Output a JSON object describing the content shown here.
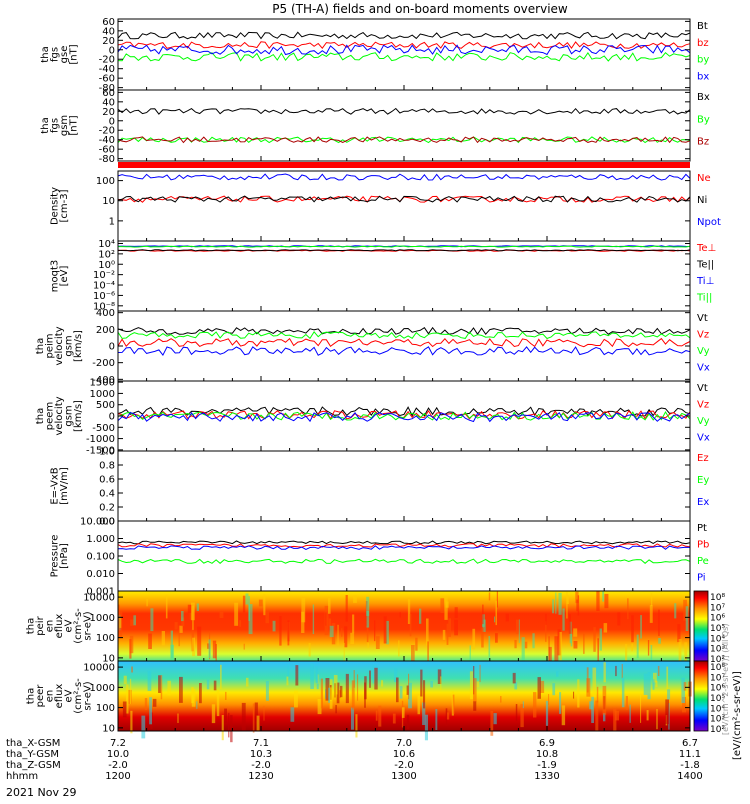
{
  "title": "P5 (TH-A) fields and on-board moments overview",
  "date_label": "2021 Nov 29",
  "colorbar_unit": "[eV/(cm²-s-sr-eV)]",
  "colorbar_extra": "[eV/(cm^2-s-sr-eV)] (All Qs)",
  "chart_data": {
    "type": "line",
    "time_range_hhmm": [
      "1200",
      "1400"
    ],
    "x_axis_rows": [
      {
        "label": "tha_X-GSM",
        "values": [
          "7.2",
          "7.1",
          "7.0",
          "6.9",
          "6.7"
        ]
      },
      {
        "label": "tha_Y-GSM",
        "values": [
          "10.0",
          "10.3",
          "10.6",
          "10.8",
          "11.1"
        ]
      },
      {
        "label": "tha_Z-GSM",
        "values": [
          "-2.0",
          "-2.0",
          "-2.0",
          "-1.9",
          "-1.8"
        ]
      },
      {
        "label": "hhmm",
        "values": [
          "1200",
          "1230",
          "1300",
          "1330",
          "1400"
        ]
      }
    ],
    "panels": [
      {
        "id": "fgs-gse",
        "ylabel": [
          "tha",
          "fgs",
          "gse",
          "[nT]"
        ],
        "scale": "linear",
        "ylim": [
          -85,
          65
        ],
        "ticks": [
          {
            "v": 60,
            "t": "60"
          },
          {
            "v": 40,
            "t": "40"
          },
          {
            "v": 20,
            "t": "20"
          },
          {
            "v": 0,
            "t": "0"
          },
          {
            "v": -20,
            "t": "-20"
          },
          {
            "v": -40,
            "t": "-40"
          },
          {
            "v": -60,
            "t": "-60"
          },
          {
            "v": -80,
            "t": "-80"
          }
        ],
        "series": [
          {
            "name": "Bt",
            "color": "#000000",
            "base": 30,
            "amp": 7
          },
          {
            "name": "bz",
            "color": "#ff0000",
            "base": 10,
            "amp": 7
          },
          {
            "name": "by",
            "color": "#00ff00",
            "base": -15,
            "amp": 9
          },
          {
            "name": "bx",
            "color": "#0000ff",
            "base": 0,
            "amp": 10
          }
        ]
      },
      {
        "id": "fgs-gsm",
        "ylabel": [
          "tha",
          "fgs",
          "gsm",
          "[nT]"
        ],
        "scale": "linear",
        "ylim": [
          -85,
          65
        ],
        "ticks": [
          {
            "v": 60,
            "t": "60"
          },
          {
            "v": 40,
            "t": "40"
          },
          {
            "v": 20,
            "t": "20"
          },
          {
            "v": 0,
            "t": "0"
          },
          {
            "v": -20,
            "t": "-20"
          },
          {
            "v": -40,
            "t": "-40"
          },
          {
            "v": -60,
            "t": "-60"
          },
          {
            "v": -80,
            "t": "-80"
          }
        ],
        "series": [
          {
            "name": "Bx",
            "color": "#000000",
            "base": 20,
            "amp": 6
          },
          {
            "name": "By",
            "color": "#00ff00",
            "base": -40,
            "amp": 6
          },
          {
            "name": "Bz",
            "color": "#aa0000",
            "base": -40,
            "amp": 6
          }
        ]
      },
      {
        "id": "density",
        "ylabel": [
          "Density",
          "[cm-3]"
        ],
        "scale": "log",
        "ylim": [
          0.1,
          300
        ],
        "ticks": [
          {
            "v": 100,
            "t": "100"
          },
          {
            "v": 10,
            "t": "10"
          },
          {
            "v": 1,
            "t": "1"
          }
        ],
        "series": [
          {
            "name": "Ne",
            "color": "#ff0000",
            "base": 12,
            "amp": 0.15
          },
          {
            "name": "Ni",
            "color": "#000000",
            "base": 12,
            "amp": 0.15
          },
          {
            "name": "Npot",
            "color": "#0000ff",
            "base": 150,
            "amp": 0.15
          }
        ]
      },
      {
        "id": "temperature",
        "ylabel": [
          "moqt3",
          "[eV]"
        ],
        "scale": "log",
        "ylim": [
          1e-09,
          30000.0
        ],
        "ticks": [
          {
            "v": 10000,
            "t": "10⁴"
          },
          {
            "v": 100,
            "t": "10²"
          },
          {
            "v": 1,
            "t": "10⁰"
          },
          {
            "v": 0.01,
            "t": "10⁻²"
          },
          {
            "v": 0.0001,
            "t": "10⁻⁴"
          },
          {
            "v": 1e-06,
            "t": "10⁻⁶"
          },
          {
            "v": 1e-08,
            "t": "10⁻⁸"
          }
        ],
        "series": [
          {
            "name": "Te⊥",
            "color": "#ff0000",
            "base": 400,
            "amp": 0.1
          },
          {
            "name": "Te||",
            "color": "#000000",
            "base": 500,
            "amp": 0.1
          },
          {
            "name": "Ti⊥",
            "color": "#0000ff",
            "base": 3000,
            "amp": 0.1
          },
          {
            "name": "Ti||",
            "color": "#00ff00",
            "base": 2500,
            "amp": 0.1
          }
        ]
      },
      {
        "id": "peim-velocity",
        "ylabel": [
          "tha",
          "peim",
          "velocity",
          "gsm",
          "[km/s]"
        ],
        "scale": "linear",
        "ylim": [
          -420,
          420
        ],
        "ticks": [
          {
            "v": 400,
            "t": "400"
          },
          {
            "v": 200,
            "t": "200"
          },
          {
            "v": 0,
            "t": "0"
          },
          {
            "v": -200,
            "t": "-200"
          },
          {
            "v": -400,
            "t": "-400"
          }
        ],
        "series": [
          {
            "name": "Vt",
            "color": "#000000",
            "base": 180,
            "amp": 40
          },
          {
            "name": "Vz",
            "color": "#ff0000",
            "base": 40,
            "amp": 50
          },
          {
            "name": "Vy",
            "color": "#00ff00",
            "base": 130,
            "amp": 40
          },
          {
            "name": "Vx",
            "color": "#0000ff",
            "base": -60,
            "amp": 50
          }
        ]
      },
      {
        "id": "peem-velocity",
        "ylabel": [
          "tha",
          "peem",
          "velocity",
          "gsm",
          "[km/s]"
        ],
        "scale": "linear",
        "ylim": [
          -1550,
          1550
        ],
        "ticks": [
          {
            "v": 1500,
            "t": "1500"
          },
          {
            "v": 1000,
            "t": "1000"
          },
          {
            "v": 500,
            "t": "500"
          },
          {
            "v": 0,
            "t": "0"
          },
          {
            "v": -500,
            "t": "-500"
          },
          {
            "v": -1000,
            "t": "-1000"
          },
          {
            "v": -1500,
            "t": "-1500"
          }
        ],
        "series": [
          {
            "name": "Vt",
            "color": "#000000",
            "base": 200,
            "amp": 200
          },
          {
            "name": "Vz",
            "color": "#ff0000",
            "base": 50,
            "amp": 180
          },
          {
            "name": "Vy",
            "color": "#00ff00",
            "base": 0,
            "amp": 180
          },
          {
            "name": "Vx",
            "color": "#0000ff",
            "base": -50,
            "amp": 200
          }
        ]
      },
      {
        "id": "e-field",
        "ylabel": [
          "E=-VxB",
          "[mV/m]"
        ],
        "scale": "linear",
        "ylim": [
          0,
          1
        ],
        "ticks": [
          {
            "v": 1.0,
            "t": "1.0"
          },
          {
            "v": 0.8,
            "t": "0.8"
          },
          {
            "v": 0.6,
            "t": "0.6"
          },
          {
            "v": 0.4,
            "t": "0.4"
          },
          {
            "v": 0.2,
            "t": "0.2"
          },
          {
            "v": 0.0,
            "t": "0.0"
          }
        ],
        "series": [
          {
            "name": "Ez",
            "color": "#ff0000",
            "base": null,
            "amp": 0
          },
          {
            "name": "Ey",
            "color": "#00ff00",
            "base": null,
            "amp": 0
          },
          {
            "name": "Ex",
            "color": "#0000ff",
            "base": null,
            "amp": 0
          }
        ]
      },
      {
        "id": "pressure",
        "ylabel": [
          "Pressure",
          "[nPa]"
        ],
        "scale": "log",
        "ylim": [
          0.001,
          10
        ],
        "ticks": [
          {
            "v": 10,
            "t": "10.000"
          },
          {
            "v": 1,
            "t": "1.000"
          },
          {
            "v": 0.1,
            "t": "0.100"
          },
          {
            "v": 0.01,
            "t": "0.010"
          },
          {
            "v": 0.001,
            "t": "0.001"
          }
        ],
        "series": [
          {
            "name": "Pt",
            "color": "#000000",
            "base": 0.6,
            "amp": 0.08
          },
          {
            "name": "Pb",
            "color": "#ff0000",
            "base": 0.4,
            "amp": 0.1
          },
          {
            "name": "Pe",
            "color": "#00ff00",
            "base": 0.05,
            "amp": 0.12
          },
          {
            "name": "Pi",
            "color": "#0000ff",
            "base": 0.3,
            "amp": 0.1
          }
        ]
      },
      {
        "id": "peir-spectrogram",
        "kind": "spectrogram",
        "ylabel": [
          "tha",
          "peir",
          "en",
          "eflux",
          "eV",
          "(cm²-s-",
          "sr-eV)"
        ],
        "scale": "log",
        "ylim": [
          7,
          20000
        ],
        "ticks": [
          {
            "v": 10000,
            "t": "10000"
          },
          {
            "v": 1000,
            "t": "1000"
          },
          {
            "v": 100,
            "t": "100"
          },
          {
            "v": 10,
            "t": "10"
          }
        ],
        "colorbar_ticks": [
          "10⁸",
          "10⁷",
          "10⁶",
          "10⁵",
          "10⁴",
          "10³",
          "10²"
        ]
      },
      {
        "id": "peer-spectrogram",
        "kind": "spectrogram",
        "ylabel": [
          "tha",
          "peer",
          "en",
          "eflux",
          "eV",
          "(cm²-s-",
          "sr-eV)"
        ],
        "scale": "log",
        "ylim": [
          7,
          20000
        ],
        "ticks": [
          {
            "v": 10000,
            "t": "10000"
          },
          {
            "v": 1000,
            "t": "1000"
          },
          {
            "v": 100,
            "t": "100"
          },
          {
            "v": 10,
            "t": "10"
          }
        ],
        "colorbar_ticks": [
          "10⁸",
          "10⁷",
          "10⁶",
          "10⁵",
          "10⁴",
          "10³",
          "10²"
        ]
      }
    ]
  }
}
